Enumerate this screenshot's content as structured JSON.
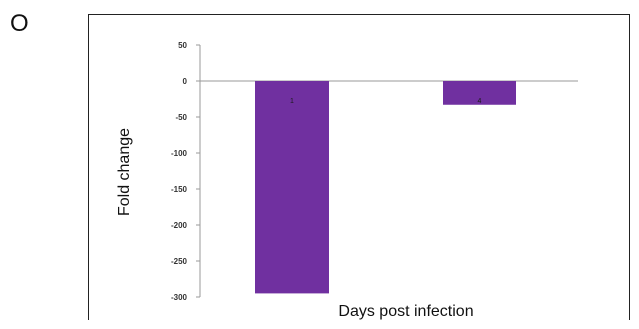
{
  "panel_label": "O",
  "colors": {
    "bar": "#7030A0",
    "axis": "#9a9a9a",
    "text": "#111111"
  },
  "chart_data": {
    "type": "bar",
    "categories": [
      "",
      ""
    ],
    "values": [
      -295,
      -33
    ],
    "data_labels": [
      "1",
      "4"
    ],
    "title": "",
    "xlabel": "Days post infection",
    "ylabel": "Fold change",
    "ylim": [
      -300,
      50
    ],
    "yticks": [
      50,
      0,
      -50,
      -100,
      -150,
      -200,
      -250,
      -300
    ],
    "grid": false,
    "legend": "none"
  }
}
